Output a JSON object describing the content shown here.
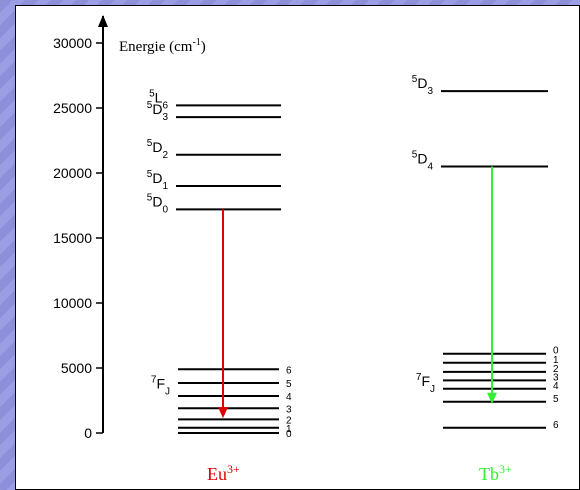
{
  "axis": {
    "label": "Energie (cm",
    "label_sup": "-1",
    "label_close": ")",
    "ticks": [
      0,
      5000,
      10000,
      15000,
      20000,
      25000,
      30000
    ],
    "ylim": [
      0,
      30000
    ]
  },
  "eu": {
    "name": "Eu",
    "charge": "3+",
    "color": "#e00000",
    "upper_levels": [
      {
        "term": "5",
        "letter": "L",
        "sub": "6",
        "energy": 25200
      },
      {
        "term": "5",
        "letter": "D",
        "sub": "3",
        "energy": 24300
      },
      {
        "term": "5",
        "letter": "D",
        "sub": "2",
        "energy": 21400
      },
      {
        "term": "5",
        "letter": "D",
        "sub": "1",
        "energy": 19000
      },
      {
        "term": "5",
        "letter": "D",
        "sub": "0",
        "energy": 17200
      }
    ],
    "ground_manifold": {
      "term": "7",
      "letter": "F",
      "sub": "J",
      "levels": [
        {
          "j": "6",
          "energy": 4900
        },
        {
          "j": "5",
          "energy": 3850
        },
        {
          "j": "4",
          "energy": 2850
        },
        {
          "j": "3",
          "energy": 1900
        },
        {
          "j": "2",
          "energy": 1050
        },
        {
          "j": "1",
          "energy": 400
        },
        {
          "j": "0",
          "energy": 0
        }
      ]
    },
    "arrow": {
      "from": 17200,
      "to": 1300
    }
  },
  "tb": {
    "name": "Tb",
    "charge": "3+",
    "color": "#33ee33",
    "upper_levels": [
      {
        "term": "5",
        "letter": "D",
        "sub": "3",
        "energy": 26300
      },
      {
        "term": "5",
        "letter": "D",
        "sub": "4",
        "energy": 20500
      }
    ],
    "ground_manifold": {
      "term": "7",
      "letter": "F",
      "sub": "J",
      "levels": [
        {
          "j": "0",
          "energy": 6100
        },
        {
          "j": "1",
          "energy": 5400
        },
        {
          "j": "2",
          "energy": 4700
        },
        {
          "j": "3",
          "energy": 4050
        },
        {
          "j": "4",
          "energy": 3400
        },
        {
          "j": "5",
          "energy": 2400
        },
        {
          "j": "6",
          "energy": 400
        }
      ]
    },
    "arrow": {
      "from": 20500,
      "to": 2400
    }
  }
}
